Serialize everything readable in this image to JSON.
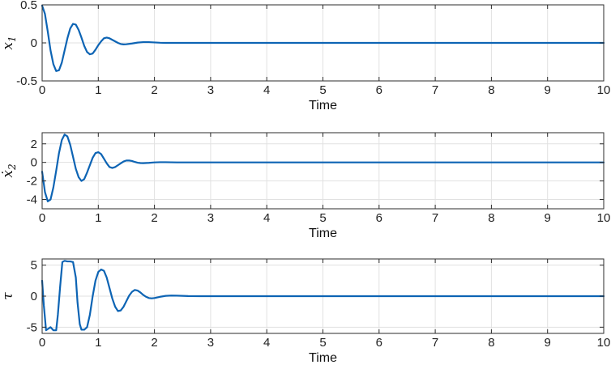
{
  "chart_data": [
    {
      "type": "line",
      "xlabel": "Time",
      "ylabel": "x1",
      "ylabel_symbol": "x",
      "ylabel_sub": "1",
      "xlim": [
        0,
        10
      ],
      "ylim": [
        -0.5,
        0.5
      ],
      "xticks": [
        0,
        1,
        2,
        3,
        4,
        5,
        6,
        7,
        8,
        9,
        10
      ],
      "yticks": [
        -0.5,
        0,
        0.5
      ],
      "ytick_labels": [
        "-0.5",
        "0",
        "0.5"
      ],
      "grid": true,
      "color": "#0d64b4",
      "x": [
        0,
        0.05,
        0.1,
        0.15,
        0.2,
        0.25,
        0.3,
        0.35,
        0.4,
        0.45,
        0.5,
        0.55,
        0.6,
        0.65,
        0.7,
        0.75,
        0.8,
        0.85,
        0.9,
        0.95,
        1.0,
        1.05,
        1.1,
        1.15,
        1.2,
        1.25,
        1.3,
        1.35,
        1.4,
        1.45,
        1.5,
        1.6,
        1.7,
        1.8,
        1.9,
        2.0,
        2.1,
        2.2,
        2.4,
        2.6,
        3,
        4,
        5,
        6,
        7,
        8,
        9,
        10
      ],
      "values": [
        0.49,
        0.38,
        0.15,
        -0.1,
        -0.28,
        -0.37,
        -0.36,
        -0.26,
        -0.1,
        0.06,
        0.19,
        0.25,
        0.24,
        0.17,
        0.07,
        -0.04,
        -0.12,
        -0.15,
        -0.14,
        -0.09,
        -0.03,
        0.02,
        0.06,
        0.07,
        0.06,
        0.04,
        0.02,
        0.0,
        -0.015,
        -0.02,
        -0.018,
        -0.008,
        0.004,
        0.01,
        0.01,
        0.006,
        0.002,
        0.0,
        0.0,
        0.0,
        0.0,
        0.0,
        0.0,
        0.0,
        0.0,
        0.0,
        0.0,
        0.0
      ]
    },
    {
      "type": "line",
      "xlabel": "Time",
      "ylabel": "ẋ2",
      "ylabel_symbol": "ẋ",
      "ylabel_sub": "2",
      "xlim": [
        0,
        10
      ],
      "ylim": [
        -5,
        3.2
      ],
      "xticks": [
        0,
        1,
        2,
        3,
        4,
        5,
        6,
        7,
        8,
        9,
        10
      ],
      "yticks": [
        -4,
        -2,
        0,
        2
      ],
      "ytick_labels": [
        "-4",
        "-2",
        "0",
        "2"
      ],
      "grid": true,
      "color": "#0d64b4",
      "x": [
        0,
        0.05,
        0.1,
        0.15,
        0.2,
        0.25,
        0.3,
        0.35,
        0.4,
        0.45,
        0.5,
        0.55,
        0.6,
        0.65,
        0.7,
        0.75,
        0.8,
        0.85,
        0.9,
        0.95,
        1.0,
        1.05,
        1.1,
        1.15,
        1.2,
        1.25,
        1.3,
        1.35,
        1.4,
        1.45,
        1.5,
        1.55,
        1.6,
        1.65,
        1.7,
        1.75,
        1.8,
        1.9,
        2.0,
        2.1,
        2.2,
        2.4,
        2.6,
        3,
        4,
        5,
        6,
        7,
        8,
        9,
        10
      ],
      "values": [
        -1.0,
        -3.2,
        -4.2,
        -4.0,
        -2.7,
        -0.9,
        1.0,
        2.4,
        3.0,
        2.8,
        1.9,
        0.6,
        -0.7,
        -1.6,
        -2.0,
        -1.8,
        -1.1,
        -0.3,
        0.5,
        1.0,
        1.1,
        0.9,
        0.4,
        -0.1,
        -0.5,
        -0.6,
        -0.5,
        -0.3,
        -0.1,
        0.1,
        0.2,
        0.2,
        0.15,
        0.05,
        -0.03,
        -0.07,
        -0.08,
        -0.05,
        0.0,
        0.02,
        0.02,
        0.0,
        0.0,
        0.0,
        0.0,
        0.0,
        0.0,
        0.0,
        0.0,
        0.0,
        0.0
      ]
    },
    {
      "type": "line",
      "xlabel": "Time",
      "ylabel": "τ",
      "ylabel_symbol": "τ",
      "ylabel_sub": "",
      "xlim": [
        0,
        10
      ],
      "ylim": [
        -6,
        6
      ],
      "xticks": [
        0,
        1,
        2,
        3,
        4,
        5,
        6,
        7,
        8,
        9,
        10
      ],
      "yticks": [
        -5,
        0,
        5
      ],
      "ytick_labels": [
        "-5",
        "0",
        "5"
      ],
      "grid": true,
      "color": "#0d64b4",
      "x": [
        0,
        0.03,
        0.07,
        0.1,
        0.15,
        0.2,
        0.25,
        0.28,
        0.32,
        0.36,
        0.4,
        0.45,
        0.5,
        0.55,
        0.6,
        0.63,
        0.67,
        0.7,
        0.75,
        0.8,
        0.85,
        0.9,
        0.95,
        1.0,
        1.05,
        1.1,
        1.15,
        1.2,
        1.25,
        1.3,
        1.35,
        1.4,
        1.45,
        1.5,
        1.55,
        1.6,
        1.65,
        1.7,
        1.75,
        1.8,
        1.85,
        1.9,
        1.95,
        2.0,
        2.05,
        2.1,
        2.2,
        2.3,
        2.4,
        2.6,
        2.8,
        3,
        4,
        5,
        6,
        7,
        8,
        9,
        10
      ],
      "values": [
        2.5,
        -1.5,
        -5.5,
        -5.3,
        -5.0,
        -5.5,
        -5.5,
        -3.0,
        1.5,
        5.5,
        5.7,
        5.6,
        5.6,
        5.5,
        3.0,
        -1.0,
        -4.5,
        -5.4,
        -5.4,
        -5.0,
        -3.0,
        0.0,
        2.5,
        3.9,
        4.3,
        4.1,
        3.0,
        1.3,
        -0.4,
        -1.7,
        -2.4,
        -2.3,
        -1.7,
        -0.8,
        0.1,
        0.7,
        1.0,
        0.9,
        0.6,
        0.2,
        -0.1,
        -0.3,
        -0.35,
        -0.3,
        -0.2,
        -0.1,
        0.05,
        0.1,
        0.08,
        0.02,
        0.0,
        0.0,
        0.0,
        0.0,
        0.0,
        0.0,
        0.0,
        0.0,
        0.0
      ]
    }
  ]
}
